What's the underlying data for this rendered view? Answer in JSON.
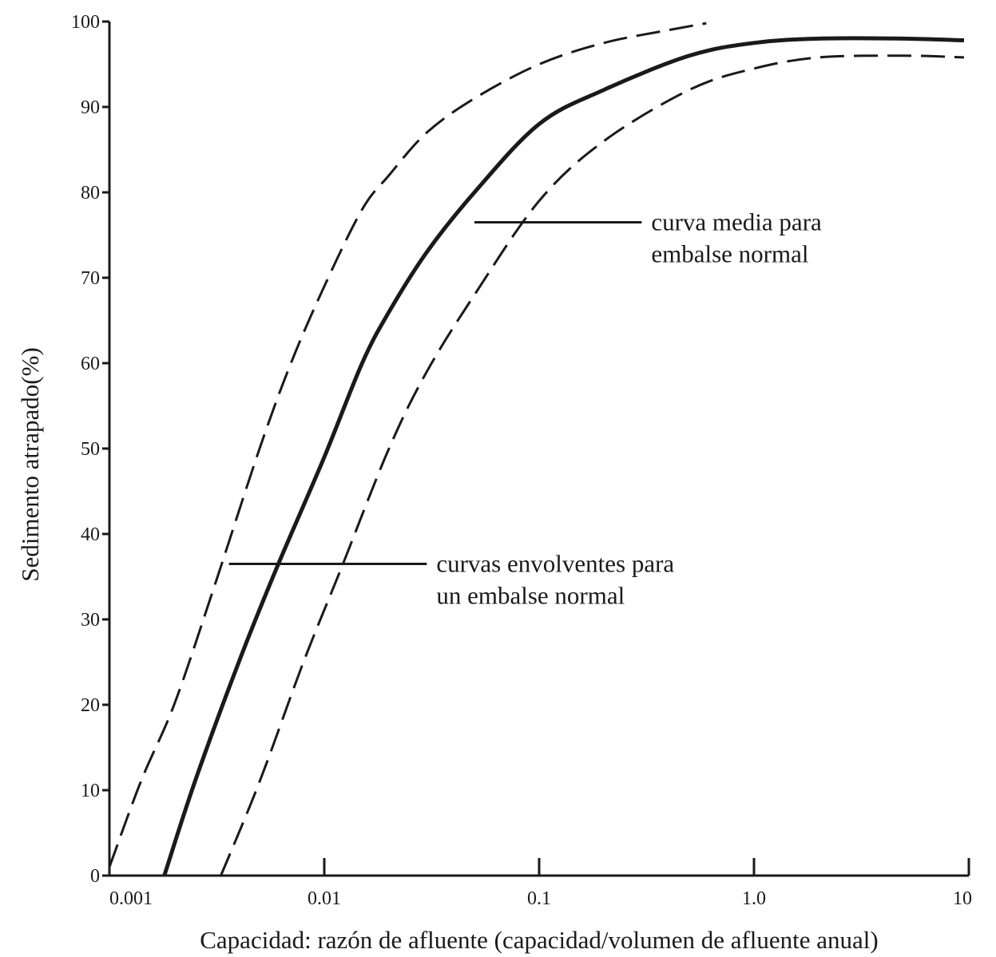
{
  "chart_data": {
    "type": "line",
    "xlabel": "Capacidad: razón de afluente (capacidad/volumen de afluente anual)",
    "ylabel": "Sedimento atrapado(%)",
    "xscale": "log",
    "xlim": [
      0.001,
      10
    ],
    "ylim": [
      0,
      100
    ],
    "x_ticks": [
      0.001,
      0.01,
      0.1,
      1.0,
      10
    ],
    "x_tick_labels": [
      "0.001",
      "0.01",
      "0.1",
      "1.0",
      "10"
    ],
    "y_ticks": [
      0,
      10,
      20,
      30,
      40,
      50,
      60,
      70,
      80,
      90,
      100
    ],
    "y_tick_labels": [
      "0",
      "10",
      "20",
      "30",
      "40",
      "50",
      "60",
      "70",
      "80",
      "90",
      "100"
    ],
    "grid": false,
    "series": [
      {
        "style": "dashed",
        "color": "#1a1a1a",
        "x": [
          0.001,
          0.0014,
          0.002,
          0.003,
          0.005,
          0.007,
          0.01,
          0.015,
          0.02,
          0.03,
          0.05,
          0.1,
          0.2,
          0.4,
          0.6
        ],
        "y": [
          1,
          11,
          20,
          33,
          50,
          60,
          69,
          78,
          82,
          87,
          91,
          95,
          97.5,
          99,
          99.8
        ]
      },
      {
        "style": "solid",
        "color": "#1a1a1a",
        "x": [
          0.0018,
          0.0025,
          0.004,
          0.006,
          0.01,
          0.015,
          0.02,
          0.03,
          0.05,
          0.1,
          0.2,
          0.5,
          1.0,
          2.0,
          5.0,
          9.5
        ],
        "y": [
          0,
          11,
          25,
          36,
          49,
          60,
          66,
          73,
          80,
          88,
          92,
          96,
          97.5,
          98,
          98,
          97.8
        ]
      },
      {
        "style": "dashed",
        "color": "#1a1a1a",
        "x": [
          0.0033,
          0.005,
          0.008,
          0.012,
          0.02,
          0.03,
          0.05,
          0.1,
          0.2,
          0.5,
          1.0,
          2.0,
          5.0,
          9.5
        ],
        "y": [
          0,
          11,
          25,
          36,
          50,
          59,
          68,
          79,
          86,
          92,
          94.5,
          95.8,
          96,
          95.8
        ]
      }
    ],
    "annotations": [
      {
        "lines": [
          "curva media para",
          "embalse normal"
        ],
        "leader": {
          "x_from": 0.05,
          "x_to": 0.3,
          "y": 76.5
        }
      },
      {
        "lines": [
          "curvas envolventes para",
          "un embalse normal"
        ],
        "leader": {
          "x_from": 0.0036,
          "x_to": 0.03,
          "y": 36.5
        }
      }
    ]
  }
}
